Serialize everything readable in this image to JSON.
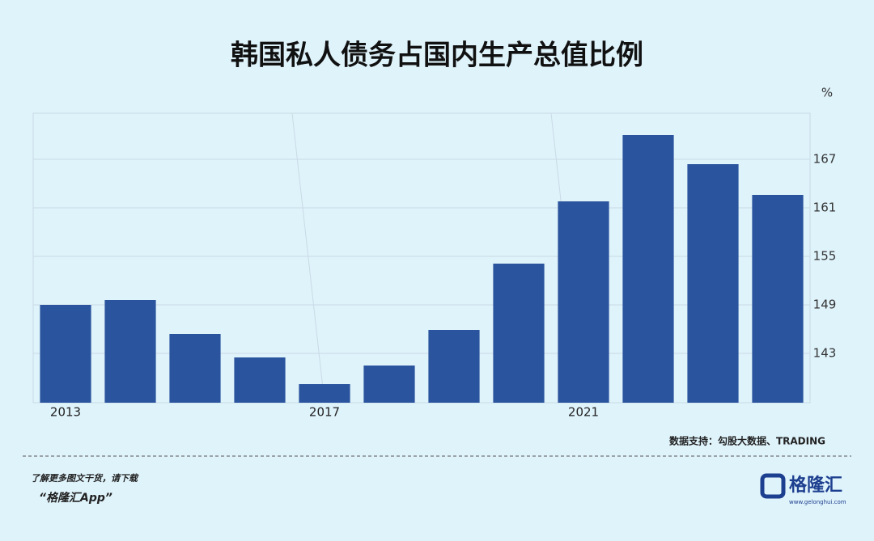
{
  "chart_data": {
    "type": "bar",
    "title": "韩国私人债务占国内生产总值比例",
    "unit": "%",
    "categories": [
      "2013",
      null,
      null,
      null,
      "2017",
      null,
      null,
      null,
      "2021",
      null,
      null,
      null
    ],
    "values": [
      149.0,
      149.6,
      145.4,
      142.5,
      139.2,
      141.5,
      145.9,
      154.1,
      161.8,
      170.0,
      166.4,
      162.6
    ],
    "color": "#2b549e",
    "ylim": [
      136.9,
      172.7
    ],
    "yticks": [
      143,
      149,
      155,
      161,
      167
    ],
    "grid": true,
    "source": "数据支持：勾股大数据、TRADING"
  },
  "footer": {
    "line1": "了解更多图文干货，请下载",
    "line2": "“格隆汇App”",
    "logo": "格隆汇",
    "logo_url": "www.gelonghui.com"
  }
}
